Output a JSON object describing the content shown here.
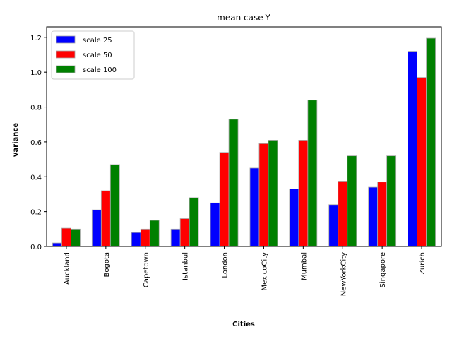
{
  "chart_data": {
    "type": "bar",
    "title": "mean case-Y",
    "xlabel": "Cities",
    "ylabel": "variance",
    "categories": [
      "Auckland",
      "Bogota",
      "Capetown",
      "Istanbul",
      "London",
      "MexicoCity",
      "Mumbai",
      "NewYorkCity",
      "Singapore",
      "Zurich"
    ],
    "series": [
      {
        "name": "scale 25",
        "color": "#0000ff",
        "values": [
          0.02,
          0.21,
          0.08,
          0.1,
          0.25,
          0.45,
          0.33,
          0.24,
          0.34,
          1.12
        ]
      },
      {
        "name": "scale 50",
        "color": "#ff0000",
        "values": [
          0.105,
          0.32,
          0.1,
          0.16,
          0.54,
          0.59,
          0.61,
          0.375,
          0.37,
          0.97
        ]
      },
      {
        "name": "scale 100",
        "color": "#008000",
        "values": [
          0.1,
          0.47,
          0.15,
          0.28,
          0.73,
          0.61,
          0.84,
          0.52,
          0.52,
          1.195
        ]
      }
    ],
    "ylim": [
      0,
      1.26
    ],
    "yticks": [
      0.0,
      0.2,
      0.4,
      0.6,
      0.8,
      1.0,
      1.2
    ],
    "yticklabels": [
      "0.0",
      "0.2",
      "0.4",
      "0.6",
      "0.8",
      "1.0",
      "1.2"
    ],
    "grid": false,
    "legend_position": "top-left"
  }
}
